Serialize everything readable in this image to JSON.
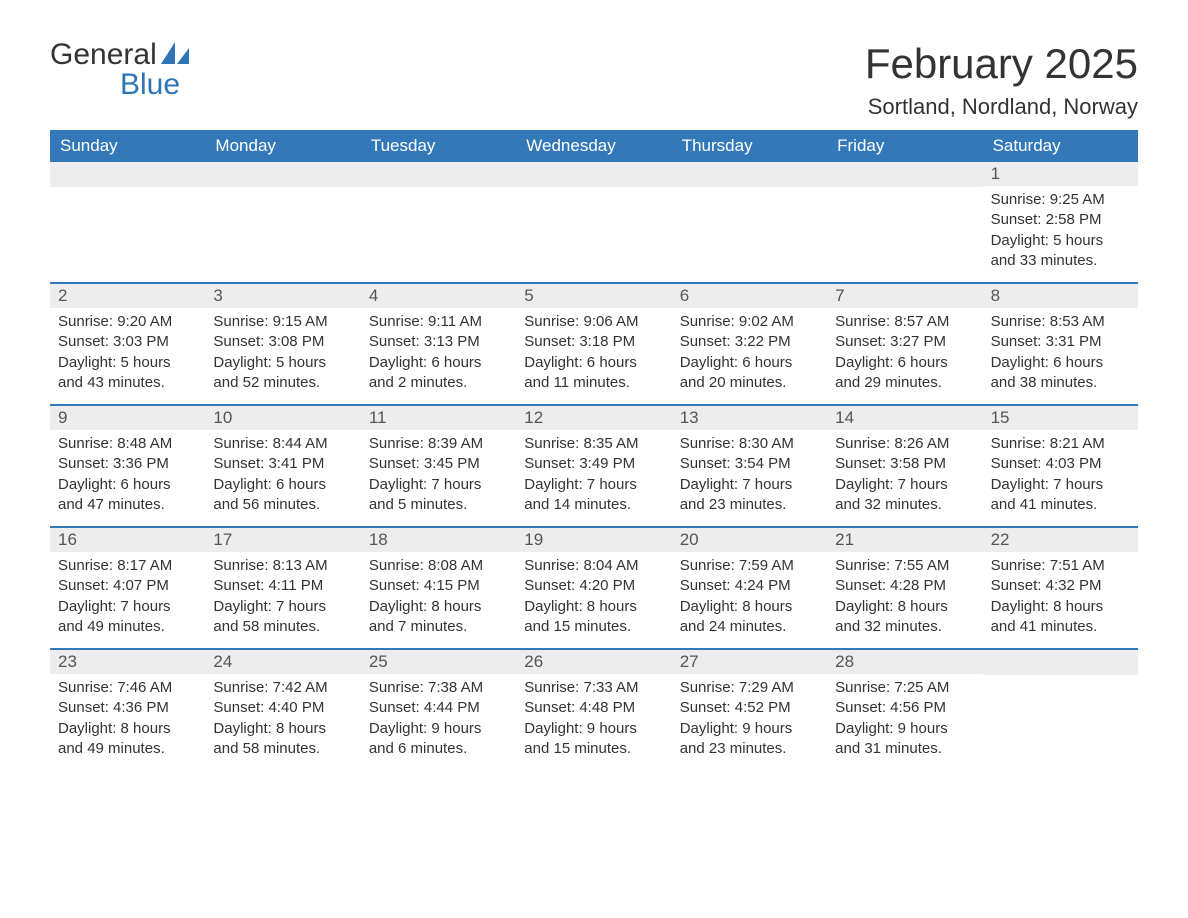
{
  "logo": {
    "line1": "General",
    "line2": "Blue"
  },
  "title": "February 2025",
  "location": "Sortland, Nordland, Norway",
  "colors": {
    "header_bg": "#3378b8",
    "header_text": "#ffffff",
    "daynum_bg": "#ededed",
    "body_text": "#333333",
    "accent": "#2e75b6"
  },
  "day_headers": [
    "Sunday",
    "Monday",
    "Tuesday",
    "Wednesday",
    "Thursday",
    "Friday",
    "Saturday"
  ],
  "weeks": [
    [
      null,
      null,
      null,
      null,
      null,
      null,
      {
        "n": "1",
        "sunrise": "9:25 AM",
        "sunset": "2:58 PM",
        "dl": "5 hours and 33 minutes."
      }
    ],
    [
      {
        "n": "2",
        "sunrise": "9:20 AM",
        "sunset": "3:03 PM",
        "dl": "5 hours and 43 minutes."
      },
      {
        "n": "3",
        "sunrise": "9:15 AM",
        "sunset": "3:08 PM",
        "dl": "5 hours and 52 minutes."
      },
      {
        "n": "4",
        "sunrise": "9:11 AM",
        "sunset": "3:13 PM",
        "dl": "6 hours and 2 minutes."
      },
      {
        "n": "5",
        "sunrise": "9:06 AM",
        "sunset": "3:18 PM",
        "dl": "6 hours and 11 minutes."
      },
      {
        "n": "6",
        "sunrise": "9:02 AM",
        "sunset": "3:22 PM",
        "dl": "6 hours and 20 minutes."
      },
      {
        "n": "7",
        "sunrise": "8:57 AM",
        "sunset": "3:27 PM",
        "dl": "6 hours and 29 minutes."
      },
      {
        "n": "8",
        "sunrise": "8:53 AM",
        "sunset": "3:31 PM",
        "dl": "6 hours and 38 minutes."
      }
    ],
    [
      {
        "n": "9",
        "sunrise": "8:48 AM",
        "sunset": "3:36 PM",
        "dl": "6 hours and 47 minutes."
      },
      {
        "n": "10",
        "sunrise": "8:44 AM",
        "sunset": "3:41 PM",
        "dl": "6 hours and 56 minutes."
      },
      {
        "n": "11",
        "sunrise": "8:39 AM",
        "sunset": "3:45 PM",
        "dl": "7 hours and 5 minutes."
      },
      {
        "n": "12",
        "sunrise": "8:35 AM",
        "sunset": "3:49 PM",
        "dl": "7 hours and 14 minutes."
      },
      {
        "n": "13",
        "sunrise": "8:30 AM",
        "sunset": "3:54 PM",
        "dl": "7 hours and 23 minutes."
      },
      {
        "n": "14",
        "sunrise": "8:26 AM",
        "sunset": "3:58 PM",
        "dl": "7 hours and 32 minutes."
      },
      {
        "n": "15",
        "sunrise": "8:21 AM",
        "sunset": "4:03 PM",
        "dl": "7 hours and 41 minutes."
      }
    ],
    [
      {
        "n": "16",
        "sunrise": "8:17 AM",
        "sunset": "4:07 PM",
        "dl": "7 hours and 49 minutes."
      },
      {
        "n": "17",
        "sunrise": "8:13 AM",
        "sunset": "4:11 PM",
        "dl": "7 hours and 58 minutes."
      },
      {
        "n": "18",
        "sunrise": "8:08 AM",
        "sunset": "4:15 PM",
        "dl": "8 hours and 7 minutes."
      },
      {
        "n": "19",
        "sunrise": "8:04 AM",
        "sunset": "4:20 PM",
        "dl": "8 hours and 15 minutes."
      },
      {
        "n": "20",
        "sunrise": "7:59 AM",
        "sunset": "4:24 PM",
        "dl": "8 hours and 24 minutes."
      },
      {
        "n": "21",
        "sunrise": "7:55 AM",
        "sunset": "4:28 PM",
        "dl": "8 hours and 32 minutes."
      },
      {
        "n": "22",
        "sunrise": "7:51 AM",
        "sunset": "4:32 PM",
        "dl": "8 hours and 41 minutes."
      }
    ],
    [
      {
        "n": "23",
        "sunrise": "7:46 AM",
        "sunset": "4:36 PM",
        "dl": "8 hours and 49 minutes."
      },
      {
        "n": "24",
        "sunrise": "7:42 AM",
        "sunset": "4:40 PM",
        "dl": "8 hours and 58 minutes."
      },
      {
        "n": "25",
        "sunrise": "7:38 AM",
        "sunset": "4:44 PM",
        "dl": "9 hours and 6 minutes."
      },
      {
        "n": "26",
        "sunrise": "7:33 AM",
        "sunset": "4:48 PM",
        "dl": "9 hours and 15 minutes."
      },
      {
        "n": "27",
        "sunrise": "7:29 AM",
        "sunset": "4:52 PM",
        "dl": "9 hours and 23 minutes."
      },
      {
        "n": "28",
        "sunrise": "7:25 AM",
        "sunset": "4:56 PM",
        "dl": "9 hours and 31 minutes."
      },
      null
    ]
  ],
  "labels": {
    "sunrise": "Sunrise: ",
    "sunset": "Sunset: ",
    "daylight": "Daylight: "
  }
}
